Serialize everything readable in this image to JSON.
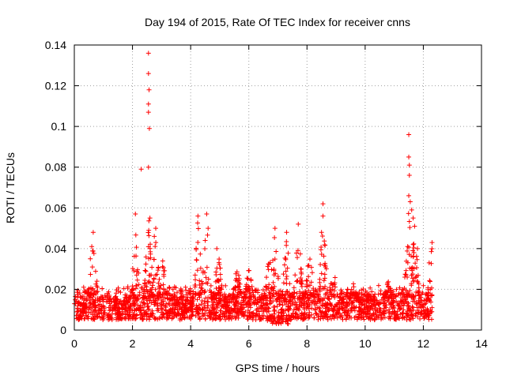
{
  "chart_data": {
    "type": "scatter",
    "title": "Day 194 of 2015, Rate Of TEC Index for receiver cnns",
    "xlabel": "GPS time / hours",
    "ylabel": "ROTI / TECUs",
    "xlim": [
      0,
      14
    ],
    "ylim": [
      0,
      0.14
    ],
    "xticks": [
      "0",
      "2",
      "4",
      "6",
      "8",
      "10",
      "12",
      "14"
    ],
    "yticks": [
      "0",
      "0.02",
      "0.04",
      "0.06",
      "0.08",
      "0.1",
      "0.12",
      "0.14"
    ],
    "grid": true,
    "marker": "+",
    "color": "#ff0000",
    "x_data_range": [
      0,
      12.3
    ],
    "baseline_band": [
      0.005,
      0.022
    ],
    "series": [
      {
        "name": "ROTI",
        "notable_points": [
          {
            "x": 2.55,
            "y": 0.136
          },
          {
            "x": 2.55,
            "y": 0.126
          },
          {
            "x": 2.57,
            "y": 0.118
          },
          {
            "x": 2.55,
            "y": 0.111
          },
          {
            "x": 2.55,
            "y": 0.107
          },
          {
            "x": 2.58,
            "y": 0.099
          },
          {
            "x": 2.3,
            "y": 0.079
          },
          {
            "x": 2.55,
            "y": 0.08
          },
          {
            "x": 2.6,
            "y": 0.055
          },
          {
            "x": 2.1,
            "y": 0.057
          },
          {
            "x": 2.8,
            "y": 0.05
          },
          {
            "x": 2.75,
            "y": 0.046
          },
          {
            "x": 0.65,
            "y": 0.048
          },
          {
            "x": 0.6,
            "y": 0.041
          },
          {
            "x": 0.55,
            "y": 0.035
          },
          {
            "x": 4.25,
            "y": 0.056
          },
          {
            "x": 4.55,
            "y": 0.057
          },
          {
            "x": 4.6,
            "y": 0.05
          },
          {
            "x": 4.5,
            "y": 0.044
          },
          {
            "x": 4.9,
            "y": 0.04
          },
          {
            "x": 6.9,
            "y": 0.05
          },
          {
            "x": 7.3,
            "y": 0.048
          },
          {
            "x": 7.7,
            "y": 0.052
          },
          {
            "x": 8.55,
            "y": 0.062
          },
          {
            "x": 8.55,
            "y": 0.056
          },
          {
            "x": 8.5,
            "y": 0.048
          },
          {
            "x": 11.5,
            "y": 0.096
          },
          {
            "x": 11.5,
            "y": 0.085
          },
          {
            "x": 11.52,
            "y": 0.081
          },
          {
            "x": 11.52,
            "y": 0.076
          },
          {
            "x": 11.5,
            "y": 0.066
          },
          {
            "x": 11.55,
            "y": 0.063
          },
          {
            "x": 11.6,
            "y": 0.059
          },
          {
            "x": 11.65,
            "y": 0.055
          },
          {
            "x": 11.7,
            "y": 0.051
          },
          {
            "x": 11.65,
            "y": 0.042
          },
          {
            "x": 11.8,
            "y": 0.04
          },
          {
            "x": 12.3,
            "y": 0.043
          },
          {
            "x": 12.2,
            "y": 0.033
          },
          {
            "x": 12.3,
            "y": 0.011
          }
        ],
        "peaks": [
          {
            "x": 0.65,
            "y": 0.048
          },
          {
            "x": 2.1,
            "y": 0.057
          },
          {
            "x": 2.55,
            "y": 0.136
          },
          {
            "x": 2.8,
            "y": 0.05
          },
          {
            "x": 3.05,
            "y": 0.04
          },
          {
            "x": 4.25,
            "y": 0.056
          },
          {
            "x": 4.55,
            "y": 0.057
          },
          {
            "x": 4.95,
            "y": 0.04
          },
          {
            "x": 5.6,
            "y": 0.033
          },
          {
            "x": 6.0,
            "y": 0.032
          },
          {
            "x": 6.7,
            "y": 0.043
          },
          {
            "x": 6.9,
            "y": 0.05
          },
          {
            "x": 7.3,
            "y": 0.048
          },
          {
            "x": 7.7,
            "y": 0.052
          },
          {
            "x": 8.1,
            "y": 0.042
          },
          {
            "x": 8.55,
            "y": 0.062
          },
          {
            "x": 8.9,
            "y": 0.033
          },
          {
            "x": 9.6,
            "y": 0.023
          },
          {
            "x": 10.8,
            "y": 0.025
          },
          {
            "x": 11.5,
            "y": 0.096
          },
          {
            "x": 11.7,
            "y": 0.055
          },
          {
            "x": 12.3,
            "y": 0.043
          }
        ]
      }
    ]
  }
}
